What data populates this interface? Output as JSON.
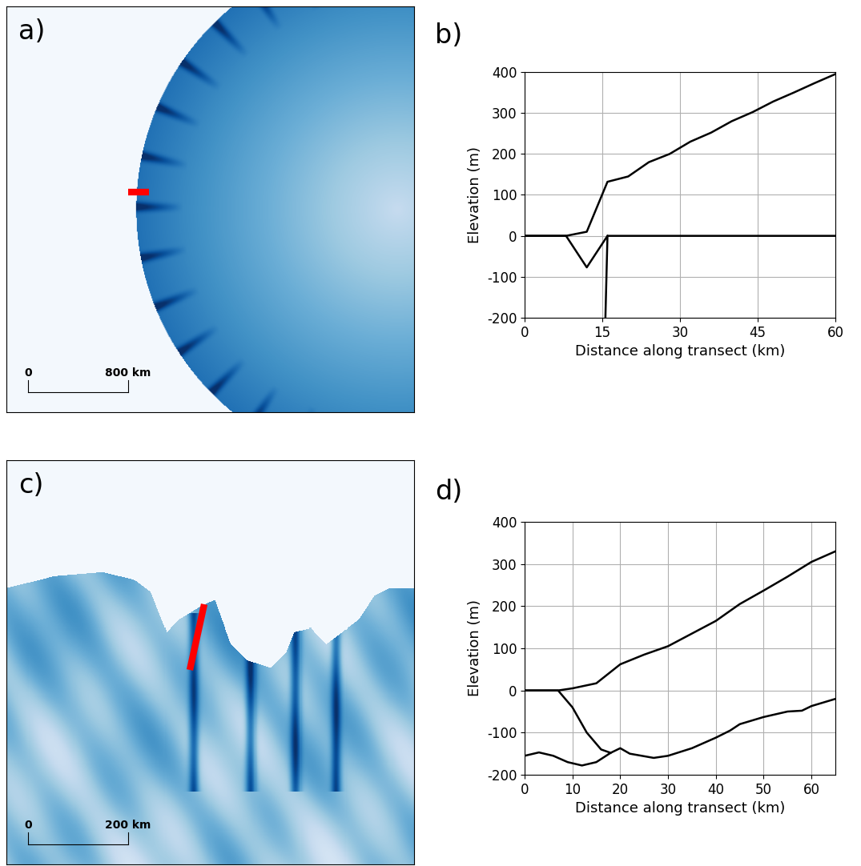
{
  "chart_data": [
    {
      "type": "line",
      "panel_label": "b)",
      "x_label": "Distance along transect (km)",
      "y_label": "Elevation (m)",
      "xlim": [
        0,
        60
      ],
      "xticks": [
        0,
        15,
        30,
        45,
        60
      ],
      "ylim": [
        -200,
        400
      ],
      "yticks": [
        -200,
        -100,
        0,
        100,
        200,
        300,
        400
      ],
      "grid": true,
      "series": [
        {
          "color": "black",
          "line_style": "solid",
          "x": [
            0,
            8,
            12,
            16,
            20,
            24,
            28,
            32,
            36,
            40,
            44,
            48,
            52,
            56,
            60
          ],
          "values": [
            0,
            0,
            10,
            132,
            145,
            180,
            200,
            230,
            252,
            280,
            302,
            328,
            350,
            373,
            395
          ]
        },
        {
          "color": "black",
          "line_style": "solid",
          "x": [
            0,
            8,
            12,
            16
          ],
          "values": [
            0,
            0,
            -77,
            0
          ]
        },
        {
          "color": "black",
          "line_style": "solid",
          "x": [
            15.6,
            16,
            60
          ],
          "values": [
            -200,
            0,
            0
          ]
        }
      ]
    },
    {
      "type": "line",
      "panel_label": "d)",
      "x_label": "Distance along transect (km)",
      "y_label": "Elevation (m)",
      "xlim": [
        0,
        65
      ],
      "xticks": [
        0,
        10,
        20,
        30,
        40,
        50,
        60
      ],
      "ylim": [
        -200,
        400
      ],
      "yticks": [
        -200,
        -100,
        0,
        100,
        200,
        300,
        400
      ],
      "grid": true,
      "series": [
        {
          "color": "black",
          "line_style": "solid",
          "x": [
            0,
            7,
            10,
            15,
            20,
            25,
            30,
            35,
            40,
            45,
            50,
            55,
            60,
            65
          ],
          "values": [
            0,
            0,
            5,
            17,
            62,
            85,
            105,
            135,
            165,
            205,
            237,
            270,
            305,
            330
          ]
        },
        {
          "color": "black",
          "line_style": "solid",
          "x": [
            0,
            7,
            10,
            13,
            16,
            18
          ],
          "values": [
            0,
            0,
            -40,
            -100,
            -140,
            -148
          ]
        },
        {
          "color": "black",
          "line_style": "solid",
          "x": [
            0,
            3,
            6,
            9,
            12,
            15,
            18,
            20,
            22,
            27,
            30,
            35,
            40,
            43,
            45,
            50,
            55,
            58,
            60,
            65
          ],
          "values": [
            -155,
            -147,
            -155,
            -170,
            -178,
            -170,
            -148,
            -137,
            -150,
            -160,
            -155,
            -137,
            -112,
            -95,
            -80,
            -63,
            -50,
            -48,
            -37,
            -20
          ]
        }
      ]
    }
  ],
  "maps": [
    {
      "panel_label": "a)",
      "scale_bar_length_km": 800,
      "scale_bar_labels": [
        "0",
        "800 km"
      ],
      "transect_color": "red"
    },
    {
      "panel_label": "c)",
      "scale_bar_length_km": 200,
      "scale_bar_labels": [
        "0",
        "200 km"
      ],
      "transect_color": "red"
    }
  ]
}
